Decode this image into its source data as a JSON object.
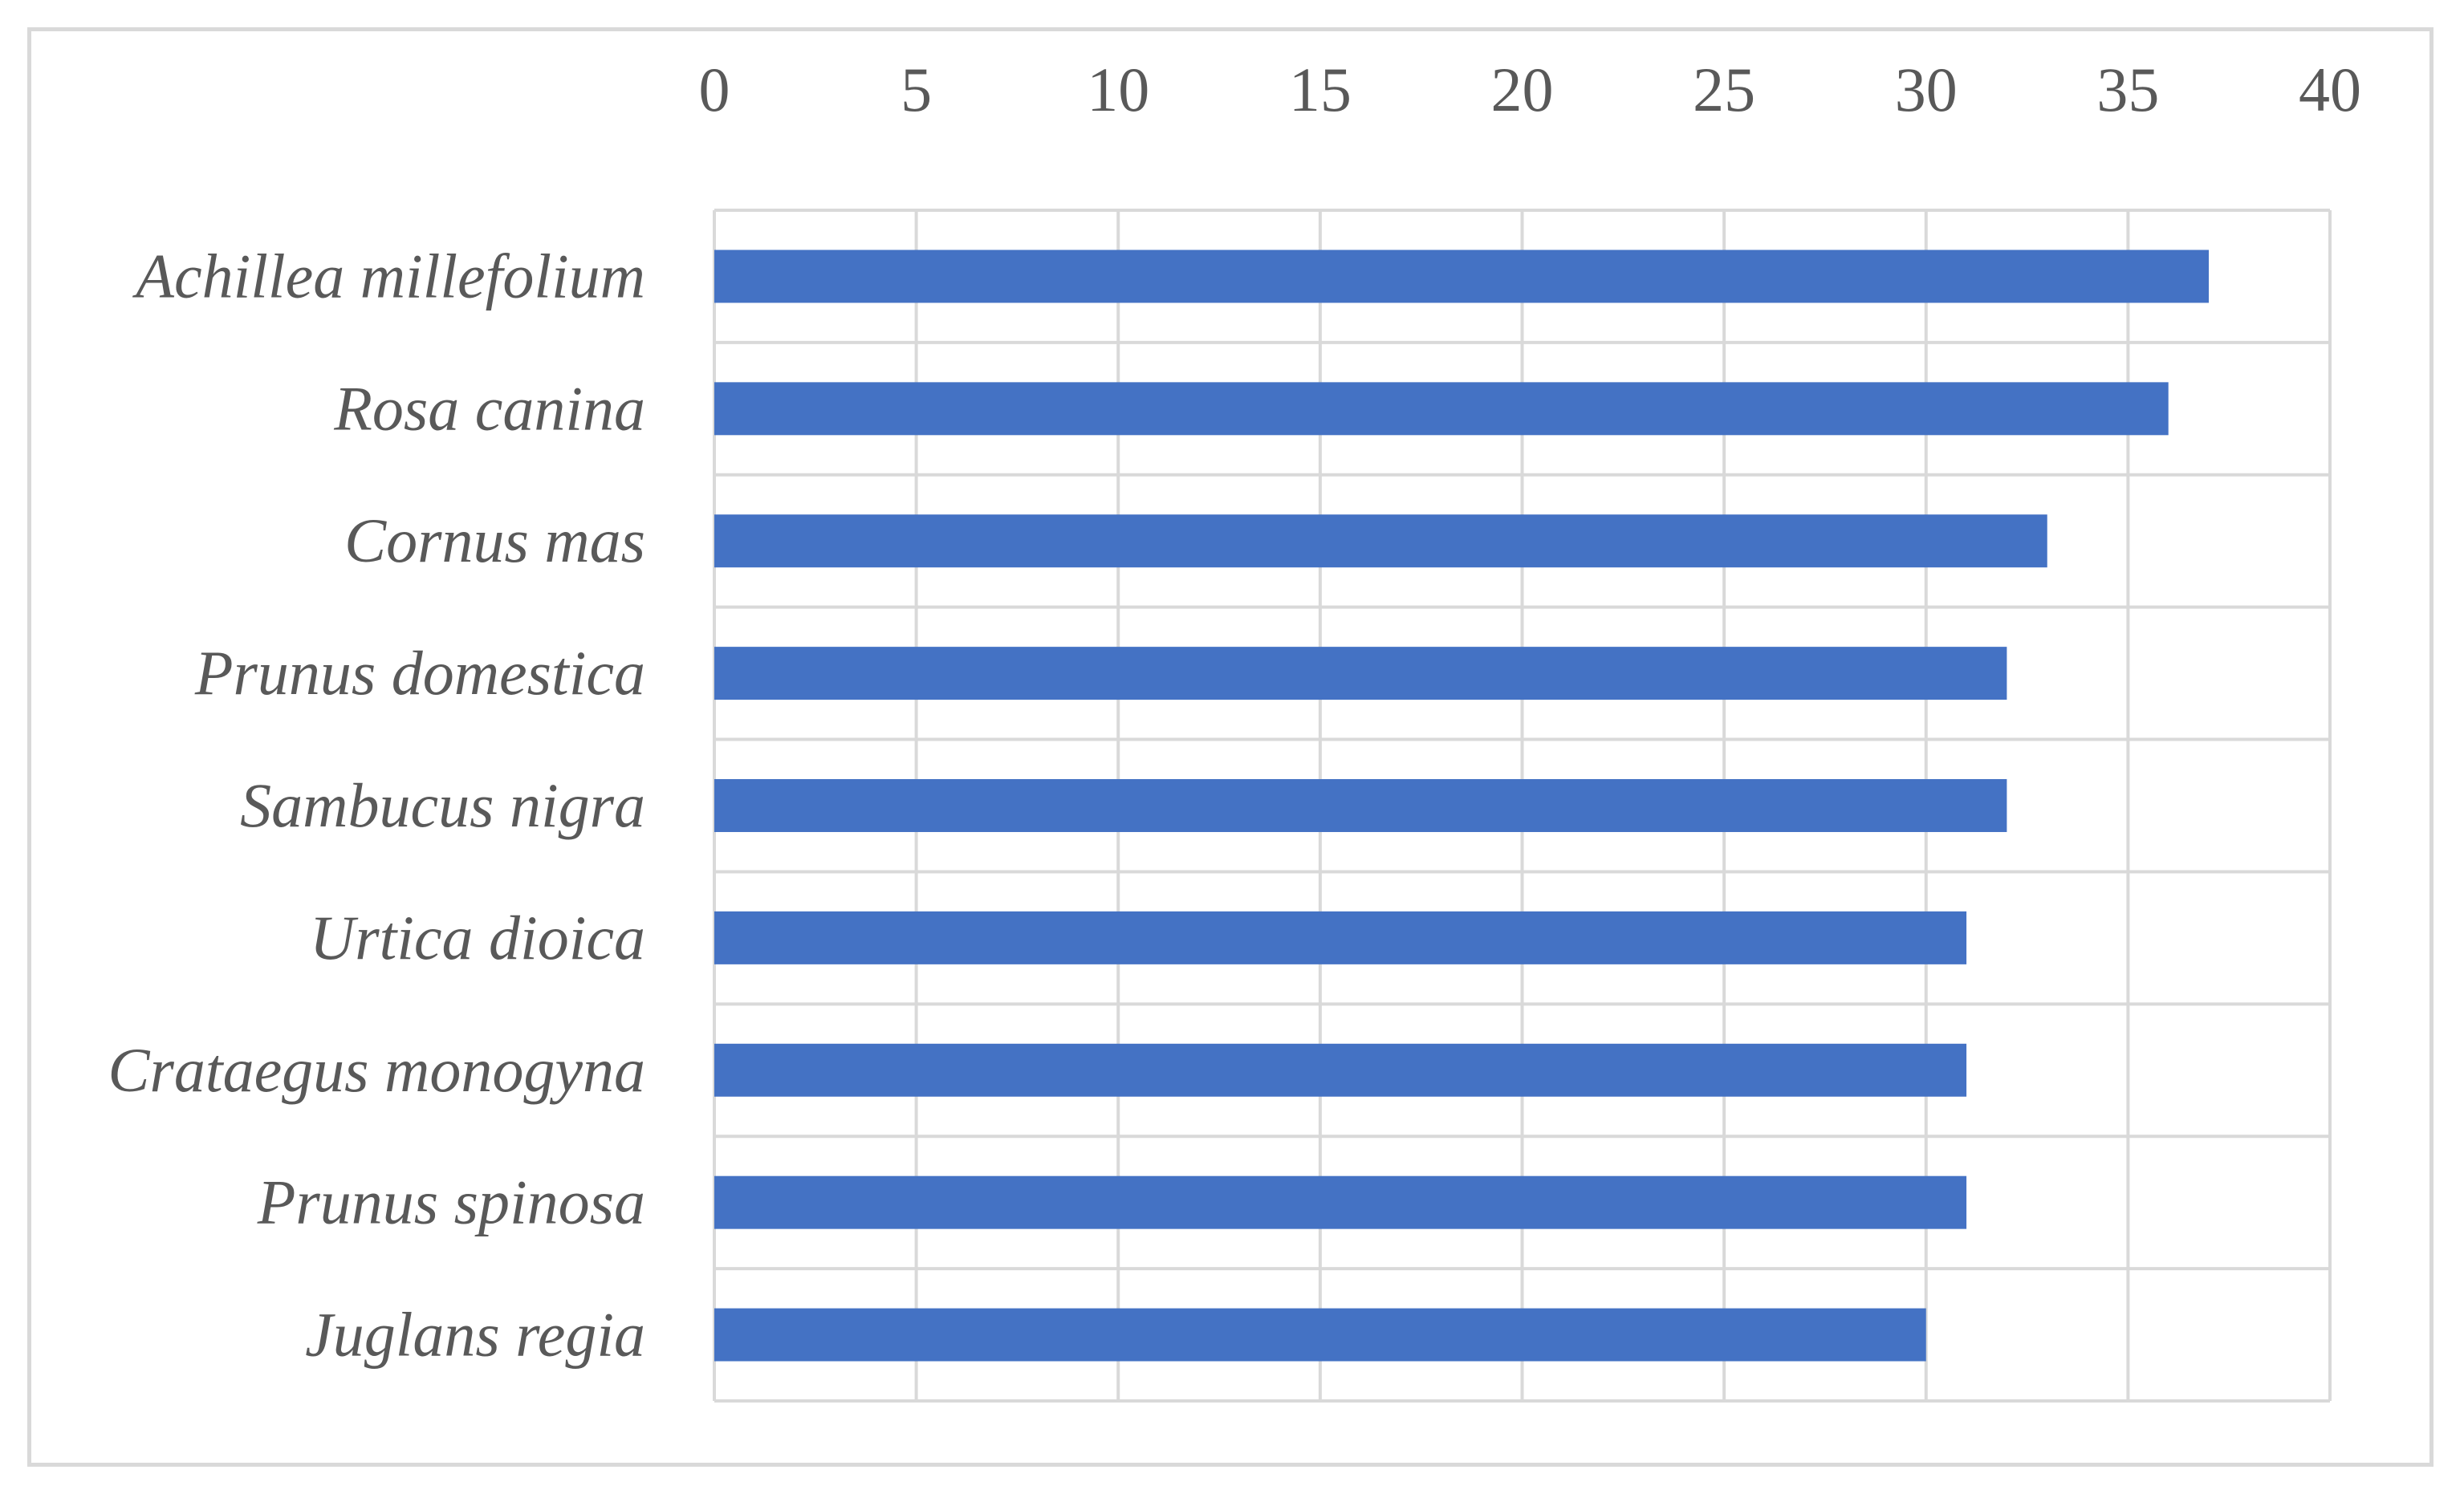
{
  "chart_data": {
    "type": "bar",
    "orientation": "horizontal",
    "categories": [
      "Achillea millefolium",
      "Rosa canina",
      "Cornus mas",
      "Prunus domestica",
      "Sambucus nigra",
      "Urtica dioica",
      "Crataegus monogyna",
      "Prunus spinosa",
      "Juglans regia"
    ],
    "values": [
      37,
      36,
      33,
      32,
      32,
      31,
      31,
      31,
      30
    ],
    "xlim": [
      0,
      40
    ],
    "xticks": [
      "0",
      "5",
      "10",
      "15",
      "20",
      "25",
      "30",
      "35",
      "40"
    ],
    "x_axis_position": "top",
    "grid": true,
    "legend": "none",
    "title": "",
    "xlabel": "",
    "ylabel": "",
    "bar_color": "#4472C4",
    "grid_color": "#D9D9D9",
    "text_color": "#595959"
  }
}
